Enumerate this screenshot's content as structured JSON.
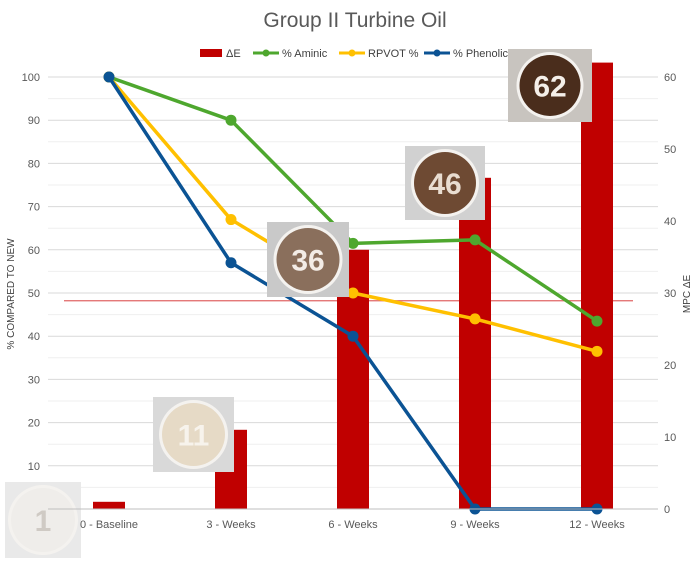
{
  "chart_data": {
    "type": "bar+line",
    "title": "Group II Turbine Oil",
    "categories": [
      "0 - Baseline",
      "3 - Weeks",
      "6 - Weeks",
      "9 - Weeks",
      "12 - Weeks"
    ],
    "ylabel_left": "% COMPARED TO NEW",
    "ylabel_right": "MPC ΔE",
    "ylim_left": [
      0,
      100
    ],
    "ylim_right": [
      0,
      60
    ],
    "yticks_left": [
      10,
      20,
      30,
      40,
      50,
      60,
      70,
      80,
      90,
      100
    ],
    "yticks_right": [
      0,
      10,
      20,
      30,
      40,
      50,
      60
    ],
    "grid": true,
    "legend_position": "top",
    "bars": {
      "name": "ΔE",
      "axis": "right",
      "color": "#c00000",
      "values": [
        1,
        11,
        36,
        46,
        62
      ]
    },
    "series": [
      {
        "name": "% Aminic",
        "axis": "left",
        "color": "#4ea72e",
        "values": [
          100,
          90,
          61.5,
          62.3,
          43.5
        ]
      },
      {
        "name": "RPVOT %",
        "axis": "left",
        "color": "#ffc000",
        "values": [
          100,
          67,
          50,
          44,
          36.5
        ]
      },
      {
        "name": "% Phenolic",
        "axis": "left",
        "color": "#0b5394",
        "values": [
          100,
          57,
          40,
          0,
          0
        ]
      }
    ],
    "reference_line": {
      "axis": "left",
      "value": 48.2,
      "color": "#e06666"
    },
    "patches": [
      {
        "label": "1",
        "category": 0,
        "color": "#efedea",
        "text_color": "#cfcac4"
      },
      {
        "label": "11",
        "category": 1,
        "color": "#e6dac6",
        "text_color": "#f7f3ec"
      },
      {
        "label": "36",
        "category": 2,
        "color": "#8a6f5c",
        "text_color": "#f3ece6"
      },
      {
        "label": "46",
        "category": 3,
        "color": "#6e4a33",
        "text_color": "#e9ddd1"
      },
      {
        "label": "62",
        "category": 4,
        "color": "#4a2d1c",
        "text_color": "#f5efe9"
      }
    ]
  }
}
